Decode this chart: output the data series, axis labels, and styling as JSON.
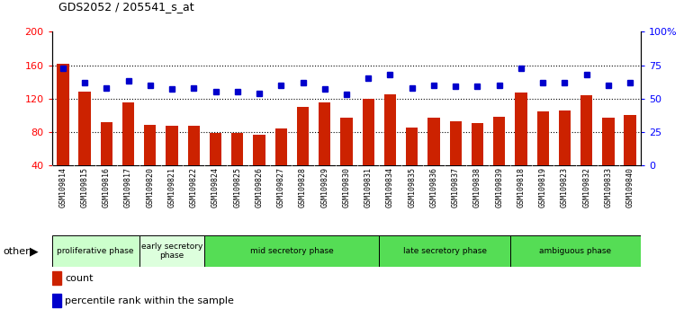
{
  "title": "GDS2052 / 205541_s_at",
  "categories": [
    "GSM109814",
    "GSM109815",
    "GSM109816",
    "GSM109817",
    "GSM109820",
    "GSM109821",
    "GSM109822",
    "GSM109824",
    "GSM109825",
    "GSM109826",
    "GSM109827",
    "GSM109828",
    "GSM109829",
    "GSM109830",
    "GSM109831",
    "GSM109834",
    "GSM109835",
    "GSM109836",
    "GSM109837",
    "GSM109838",
    "GSM109839",
    "GSM109818",
    "GSM109819",
    "GSM109823",
    "GSM109832",
    "GSM109833",
    "GSM109840"
  ],
  "bar_values": [
    162,
    128,
    92,
    115,
    88,
    87,
    87,
    79,
    79,
    77,
    84,
    110,
    115,
    97,
    120,
    125,
    85,
    97,
    93,
    91,
    98,
    127,
    105,
    106,
    124,
    97,
    100
  ],
  "dot_values": [
    73,
    62,
    58,
    63,
    60,
    57,
    58,
    55,
    55,
    54,
    60,
    62,
    57,
    53,
    65,
    68,
    58,
    60,
    59,
    59,
    60,
    73,
    62,
    62,
    68,
    60,
    62
  ],
  "phases": [
    {
      "label": "proliferative phase",
      "start": 0,
      "end": 4,
      "color": "#ccffcc"
    },
    {
      "label": "early secretory\nphase",
      "start": 4,
      "end": 7,
      "color": "#ddffdd"
    },
    {
      "label": "mid secretory phase",
      "start": 7,
      "end": 15,
      "color": "#55dd55"
    },
    {
      "label": "late secretory phase",
      "start": 15,
      "end": 21,
      "color": "#55dd55"
    },
    {
      "label": "ambiguous phase",
      "start": 21,
      "end": 27,
      "color": "#55dd55"
    }
  ],
  "bar_color": "#cc2200",
  "dot_color": "#0000cc",
  "ylim_left": [
    40,
    200
  ],
  "ylim_right": [
    0,
    100
  ],
  "yticks_left": [
    40,
    80,
    120,
    160,
    200
  ],
  "yticks_right": [
    0,
    25,
    50,
    75,
    100
  ],
  "yticklabels_right": [
    "0",
    "25",
    "50",
    "75",
    "100%"
  ],
  "grid_values": [
    80,
    120,
    160
  ],
  "background_color": "#ffffff"
}
